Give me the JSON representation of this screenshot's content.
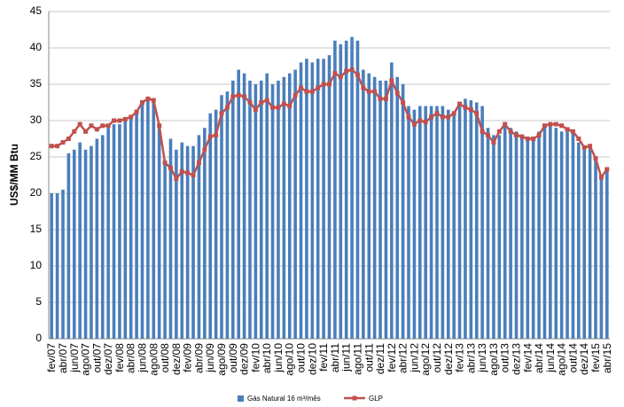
{
  "chart_data": {
    "type": "bar_line",
    "y_label": "US$/MM Btu",
    "categories": [
      "fev/07",
      null,
      "abr/07",
      null,
      "jun/07",
      null,
      "ago/07",
      null,
      "out/07",
      null,
      "dez/07",
      null,
      "fev/08",
      null,
      "abr/08",
      null,
      "jun/08",
      null,
      "ago/08",
      null,
      "out/08",
      null,
      "dez/08",
      null,
      "fev/09",
      null,
      "abr/09",
      null,
      "jun/09",
      null,
      "ago/09",
      null,
      "out/09",
      null,
      "dez/09",
      null,
      "fev/10",
      null,
      "abr/10",
      null,
      "jun/10",
      null,
      "ago/10",
      null,
      "out/10",
      null,
      "dez/10",
      null,
      "fev/11",
      null,
      "abr/11",
      null,
      "jun/11",
      null,
      "ago/11",
      null,
      "out/11",
      null,
      "dez/11",
      null,
      "fev/12",
      null,
      "abr/12",
      null,
      "jun/12",
      null,
      "ago/12",
      null,
      "out/12",
      null,
      "dez/12",
      null,
      "fev/13",
      null,
      "abr/13",
      null,
      "jun/13",
      null,
      "ago/13",
      null,
      "out/13",
      null,
      "dez/13",
      null,
      "fev/14",
      null,
      "abr/14",
      null,
      "jun/14",
      null,
      "ago/14",
      null,
      "out/14",
      null,
      "dez/14",
      null,
      "fev/15",
      null,
      "abr/15"
    ],
    "series": [
      {
        "name": "Gás Natural 16 m³/mês",
        "type": "bar",
        "color": "#4a7ebb",
        "values": [
          20,
          20,
          20.5,
          25.5,
          26,
          27,
          26,
          26.5,
          27.5,
          28,
          29,
          29.5,
          29.5,
          30,
          30.5,
          31.5,
          32.5,
          33,
          32.5,
          29,
          24,
          27.5,
          26,
          27,
          26.5,
          26.5,
          28,
          29,
          31,
          31.5,
          33.5,
          34,
          35.5,
          37,
          36.5,
          35.5,
          35,
          35.5,
          36.5,
          35,
          35.5,
          36,
          36.5,
          37,
          38,
          38.5,
          38,
          38.5,
          38.5,
          39,
          41,
          40.5,
          41,
          41.5,
          41,
          37,
          36.5,
          36,
          35.5,
          35.5,
          38,
          36,
          35,
          32,
          31.5,
          32,
          32,
          32,
          32,
          32,
          31.5,
          31,
          32,
          33,
          32.8,
          32.5,
          32,
          29,
          28,
          28,
          29.5,
          29,
          28.5,
          28,
          27.5,
          27.5,
          28.5,
          29.5,
          29.5,
          29,
          28.5,
          28.5,
          28.5,
          27,
          26,
          26.5,
          24.5,
          22,
          23
        ]
      },
      {
        "name": "GLP",
        "type": "line",
        "color": "#c0504d",
        "values": [
          26.5,
          26.5,
          27,
          27.5,
          28.5,
          29.5,
          28.5,
          29.3,
          28.8,
          29.3,
          29.3,
          30,
          30,
          30.2,
          30.5,
          31.2,
          32.5,
          33,
          32.8,
          29.3,
          24.2,
          23.5,
          22,
          23,
          22.8,
          22.5,
          24.2,
          26,
          27.8,
          28,
          31,
          31.8,
          33.3,
          33.5,
          33.3,
          32.5,
          31.5,
          32.5,
          32.8,
          31.8,
          31.8,
          32.3,
          32,
          33.5,
          34.5,
          34,
          34,
          34.5,
          35,
          35,
          36.5,
          36,
          36.8,
          37,
          36.3,
          34.5,
          34,
          34,
          33,
          33,
          35.5,
          33.8,
          32.5,
          30.5,
          29.5,
          30,
          29.8,
          30.5,
          31,
          30.5,
          30.5,
          31,
          32.3,
          31.8,
          31.5,
          31,
          28.5,
          28,
          27,
          28.5,
          29.5,
          28.5,
          28,
          27.8,
          27.5,
          27.5,
          28,
          29.3,
          29.5,
          29.5,
          29.3,
          28.8,
          28.5,
          27.5,
          26.3,
          26.5,
          24.8,
          22.2,
          23.3
        ]
      }
    ],
    "ylim": [
      0,
      45
    ],
    "yticks": [
      0,
      5,
      10,
      15,
      20,
      25,
      30,
      35,
      40,
      45
    ],
    "grid": true
  }
}
